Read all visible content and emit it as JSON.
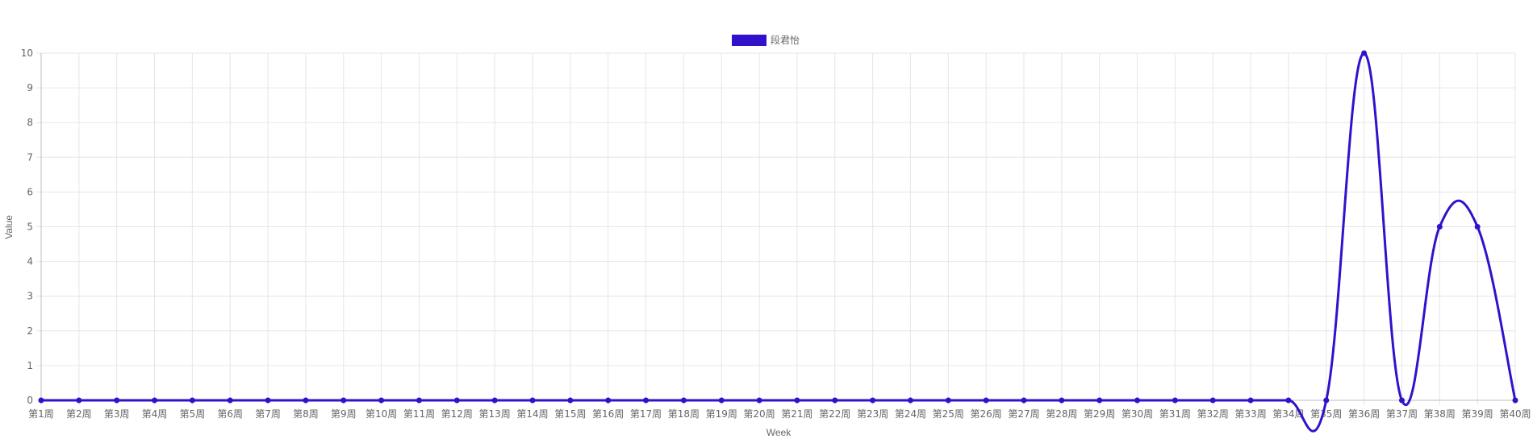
{
  "chart_data": {
    "type": "line",
    "categories": [
      "第1周",
      "第2周",
      "第3周",
      "第4周",
      "第5周",
      "第6周",
      "第7周",
      "第8周",
      "第9周",
      "第10周",
      "第11周",
      "第12周",
      "第13周",
      "第14周",
      "第15周",
      "第16周",
      "第17周",
      "第18周",
      "第19周",
      "第20周",
      "第21周",
      "第22周",
      "第23周",
      "第24周",
      "第25周",
      "第26周",
      "第27周",
      "第28周",
      "第29周",
      "第30周",
      "第31周",
      "第32周",
      "第33周",
      "第34周",
      "第35周",
      "第36周",
      "第37周",
      "第38周",
      "第39周",
      "第40周"
    ],
    "series": [
      {
        "name": "段君怡",
        "color": "#3311cc",
        "values": [
          0,
          0,
          0,
          0,
          0,
          0,
          0,
          0,
          0,
          0,
          0,
          0,
          0,
          0,
          0,
          0,
          0,
          0,
          0,
          0,
          0,
          0,
          0,
          0,
          0,
          0,
          0,
          0,
          0,
          0,
          0,
          0,
          0,
          0,
          0,
          10,
          0,
          5,
          5,
          0
        ]
      }
    ],
    "xlabel": "Week",
    "ylabel": "Value",
    "ylim": [
      0,
      10
    ],
    "yticks": [
      0,
      1,
      2,
      3,
      4,
      5,
      6,
      7,
      8,
      9,
      10
    ],
    "grid": true,
    "legend_position": "top-center"
  }
}
